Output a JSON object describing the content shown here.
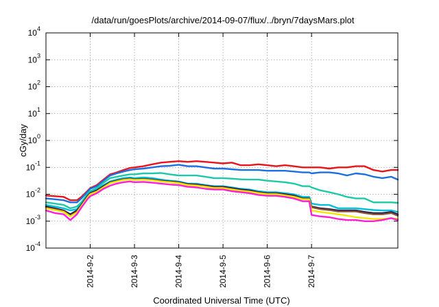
{
  "chart_data": {
    "type": "line",
    "title": "/data/run/goesPlots/archive/2014-09-07/flux/../bryn/7daysMars.plot",
    "xlabel": "Coordinated Universal Time (UTC)",
    "ylabel": "cGy/day",
    "y_scale": "log",
    "ylim": [
      0.0001,
      10000
    ],
    "xlim": [
      -1.0,
      6.95
    ],
    "x_ticks": [
      "2014-9-2",
      "2014-9-3",
      "2014-9-4",
      "2014-9-5",
      "2014-9-6",
      "2014-9-7"
    ],
    "x_tick_values": [
      0,
      1,
      2,
      3,
      4,
      5
    ],
    "y_ticks": [
      {
        "value": 0.0001,
        "base": "10",
        "exp": "-4"
      },
      {
        "value": 0.001,
        "base": "10",
        "exp": "-3"
      },
      {
        "value": 0.01,
        "base": "10",
        "exp": "-2"
      },
      {
        "value": 0.1,
        "base": "10",
        "exp": "-1"
      },
      {
        "value": 1,
        "base": "10",
        "exp": "0"
      },
      {
        "value": 10,
        "base": "10",
        "exp": "1"
      },
      {
        "value": 100,
        "base": "10",
        "exp": "2"
      },
      {
        "value": 1000,
        "base": "10",
        "exp": "3"
      },
      {
        "value": 10000,
        "base": "10",
        "exp": "4"
      }
    ],
    "grid": true,
    "legend": "none",
    "x_note": "days relative to 2014-9-2 00:00 UTC",
    "x": [
      -1.0,
      -0.8,
      -0.6,
      -0.45,
      -0.3,
      -0.2,
      -0.05,
      0.0,
      0.15,
      0.3,
      0.45,
      0.6,
      0.75,
      0.9,
      1.0,
      1.2,
      1.4,
      1.6,
      1.8,
      2.0,
      2.2,
      2.4,
      2.6,
      2.8,
      3.0,
      3.2,
      3.4,
      3.6,
      3.8,
      4.0,
      4.2,
      4.4,
      4.6,
      4.8,
      4.95,
      5.0,
      5.2,
      5.4,
      5.6,
      5.8,
      6.0,
      6.2,
      6.4,
      6.6,
      6.8,
      6.95
    ],
    "series": [
      {
        "color": "#e8141b",
        "values": [
          0.009,
          0.0085,
          0.008,
          0.006,
          0.006,
          0.008,
          0.014,
          0.017,
          0.022,
          0.035,
          0.055,
          0.065,
          0.08,
          0.095,
          0.1,
          0.11,
          0.13,
          0.15,
          0.16,
          0.17,
          0.16,
          0.17,
          0.16,
          0.15,
          0.14,
          0.15,
          0.12,
          0.12,
          0.13,
          0.12,
          0.11,
          0.12,
          0.11,
          0.1,
          0.1,
          0.1,
          0.1,
          0.09,
          0.1,
          0.1,
          0.11,
          0.11,
          0.08,
          0.07,
          0.08,
          0.08
        ]
      },
      {
        "color": "#1c6fe0",
        "values": [
          0.007,
          0.0065,
          0.006,
          0.005,
          0.005,
          0.007,
          0.013,
          0.016,
          0.02,
          0.032,
          0.05,
          0.06,
          0.07,
          0.08,
          0.085,
          0.09,
          0.1,
          0.11,
          0.115,
          0.125,
          0.11,
          0.11,
          0.1,
          0.09,
          0.09,
          0.085,
          0.08,
          0.08,
          0.08,
          0.075,
          0.075,
          0.075,
          0.07,
          0.065,
          0.065,
          0.06,
          0.065,
          0.065,
          0.06,
          0.05,
          0.06,
          0.055,
          0.045,
          0.04,
          0.045,
          0.035
        ]
      },
      {
        "color": "#1cc9a6",
        "values": [
          0.005,
          0.0045,
          0.004,
          0.003,
          0.0035,
          0.005,
          0.011,
          0.013,
          0.017,
          0.027,
          0.04,
          0.045,
          0.05,
          0.055,
          0.055,
          0.06,
          0.06,
          0.062,
          0.055,
          0.05,
          0.05,
          0.05,
          0.045,
          0.04,
          0.04,
          0.038,
          0.036,
          0.035,
          0.035,
          0.032,
          0.03,
          0.028,
          0.025,
          0.02,
          0.02,
          0.018,
          0.014,
          0.012,
          0.01,
          0.008,
          0.007,
          0.007,
          0.005,
          0.005,
          0.005,
          0.0048
        ]
      },
      {
        "color": "#00bfd8",
        "values": [
          0.004,
          0.0035,
          0.003,
          0.0025,
          0.0028,
          0.0045,
          0.01,
          0.012,
          0.015,
          0.022,
          0.03,
          0.035,
          0.04,
          0.042,
          0.04,
          0.042,
          0.04,
          0.035,
          0.032,
          0.03,
          0.025,
          0.025,
          0.022,
          0.02,
          0.02,
          0.018,
          0.016,
          0.015,
          0.013,
          0.012,
          0.012,
          0.011,
          0.01,
          0.008,
          0.008,
          0.0045,
          0.004,
          0.004,
          0.003,
          0.003,
          0.003,
          0.0028,
          0.0026,
          0.0025,
          0.0025,
          0.0022
        ]
      },
      {
        "color": "#1a1a55",
        "values": [
          0.0035,
          0.003,
          0.0025,
          0.0018,
          0.0025,
          0.004,
          0.009,
          0.011,
          0.014,
          0.02,
          0.028,
          0.032,
          0.036,
          0.038,
          0.036,
          0.037,
          0.035,
          0.032,
          0.03,
          0.028,
          0.024,
          0.023,
          0.021,
          0.019,
          0.019,
          0.017,
          0.015,
          0.014,
          0.012,
          0.011,
          0.011,
          0.01,
          0.009,
          0.007,
          0.007,
          0.0035,
          0.003,
          0.0028,
          0.0025,
          0.0025,
          0.0025,
          0.0022,
          0.002,
          0.002,
          0.0022,
          0.0018
        ]
      },
      {
        "color": "#8a4d2e",
        "values": [
          0.0032,
          0.0028,
          0.0024,
          0.0016,
          0.0023,
          0.0038,
          0.0085,
          0.0105,
          0.013,
          0.019,
          0.027,
          0.031,
          0.035,
          0.037,
          0.035,
          0.036,
          0.034,
          0.031,
          0.029,
          0.027,
          0.023,
          0.022,
          0.02,
          0.018,
          0.018,
          0.016,
          0.014,
          0.013,
          0.0115,
          0.0105,
          0.0105,
          0.0095,
          0.0085,
          0.0068,
          0.0068,
          0.0033,
          0.0028,
          0.0026,
          0.0023,
          0.0023,
          0.0023,
          0.002,
          0.0018,
          0.0018,
          0.002,
          0.0016
        ]
      },
      {
        "color": "#f2e600",
        "values": [
          0.003,
          0.0026,
          0.0022,
          0.0015,
          0.0021,
          0.0036,
          0.008,
          0.01,
          0.0125,
          0.018,
          0.026,
          0.03,
          0.034,
          0.036,
          0.034,
          0.035,
          0.033,
          0.03,
          0.028,
          0.026,
          0.022,
          0.021,
          0.019,
          0.017,
          0.017,
          0.015,
          0.0135,
          0.0125,
          0.011,
          0.01,
          0.01,
          0.009,
          0.008,
          0.0065,
          0.0065,
          0.0025,
          0.0022,
          0.002,
          0.0018,
          0.0016,
          0.0014,
          0.0013,
          0.0012,
          0.0012,
          0.0013,
          0.0012
        ]
      },
      {
        "color": "#ff1ed6",
        "values": [
          0.0025,
          0.002,
          0.0018,
          0.0011,
          0.0018,
          0.0032,
          0.007,
          0.0085,
          0.011,
          0.016,
          0.021,
          0.025,
          0.028,
          0.03,
          0.028,
          0.029,
          0.027,
          0.025,
          0.023,
          0.022,
          0.019,
          0.018,
          0.016,
          0.015,
          0.015,
          0.013,
          0.012,
          0.011,
          0.0095,
          0.0088,
          0.0088,
          0.008,
          0.007,
          0.0055,
          0.0055,
          0.0017,
          0.0015,
          0.0014,
          0.0012,
          0.0011,
          0.0011,
          0.001,
          0.001,
          0.0011,
          0.0013,
          0.0011
        ]
      }
    ]
  }
}
